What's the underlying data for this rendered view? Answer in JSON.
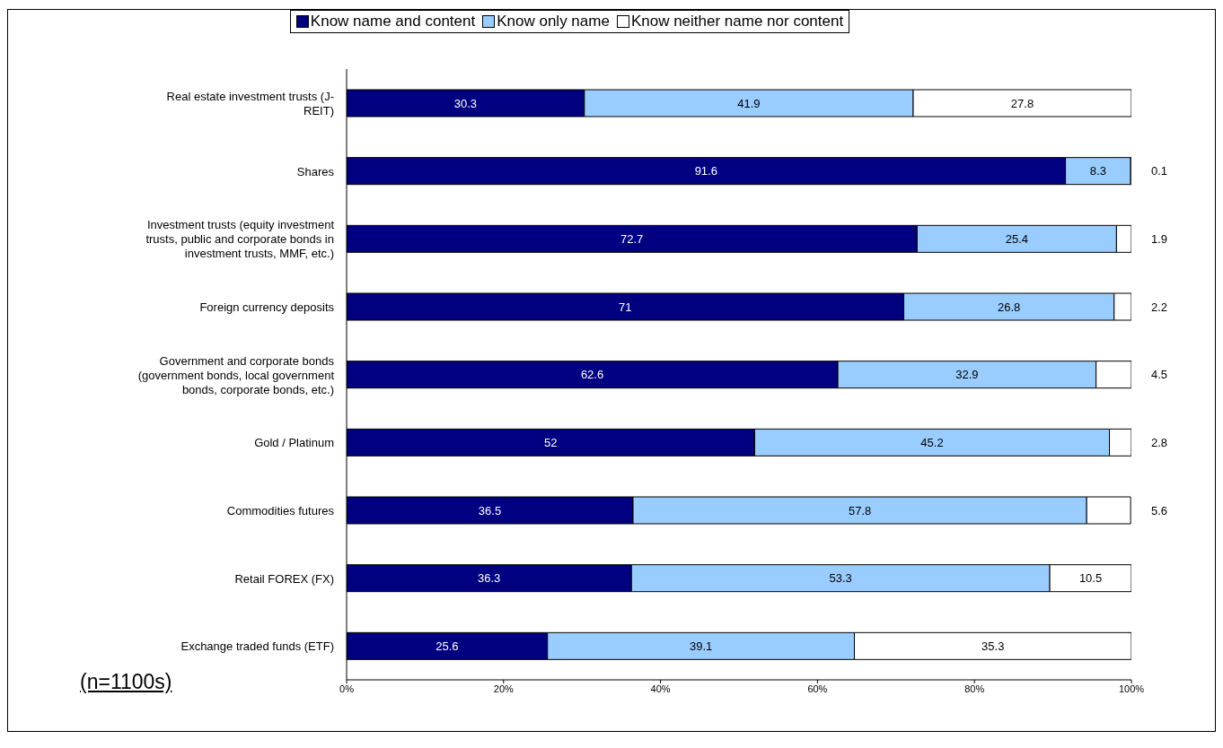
{
  "chart_data": {
    "type": "bar",
    "orientation": "horizontal",
    "stacked": true,
    "categories": [
      "Real estate investment trusts (J-REIT)",
      "Shares",
      "Investment trusts (equity investment trusts, public and corporate bonds in investment trusts, MMF, etc.)",
      "Foreign currency deposits",
      "Government and corporate bonds (government bonds, local government bonds, corporate bonds, etc.)",
      "Gold / Platinum",
      "Commodities futures",
      "Retail FOREX (FX)",
      "Exchange traded funds (ETF)"
    ],
    "series": [
      {
        "name": "Know name and content",
        "color": "#000080",
        "values": [
          30.3,
          91.6,
          72.7,
          71,
          62.6,
          52,
          36.5,
          36.3,
          25.6
        ]
      },
      {
        "name": "Know only name",
        "color": "#99ccff",
        "values": [
          41.9,
          8.3,
          25.4,
          26.8,
          32.9,
          45.2,
          57.8,
          53.3,
          39.1
        ]
      },
      {
        "name": "Know neither name nor content",
        "color": "#ffffff",
        "values": [
          27.8,
          0.1,
          1.9,
          2.2,
          4.5,
          2.8,
          5.6,
          10.5,
          35.3
        ]
      }
    ],
    "xlim": [
      0,
      100
    ],
    "xticks": [
      {
        "value": 0,
        "label": "0%"
      },
      {
        "value": 20,
        "label": "20%"
      },
      {
        "value": 40,
        "label": "40%"
      },
      {
        "value": 60,
        "label": "60%"
      },
      {
        "value": 80,
        "label": "80%"
      },
      {
        "value": 100,
        "label": "100%"
      }
    ],
    "data_labels": true,
    "legend": "top",
    "annotations": [
      "(n=1100s)"
    ]
  }
}
